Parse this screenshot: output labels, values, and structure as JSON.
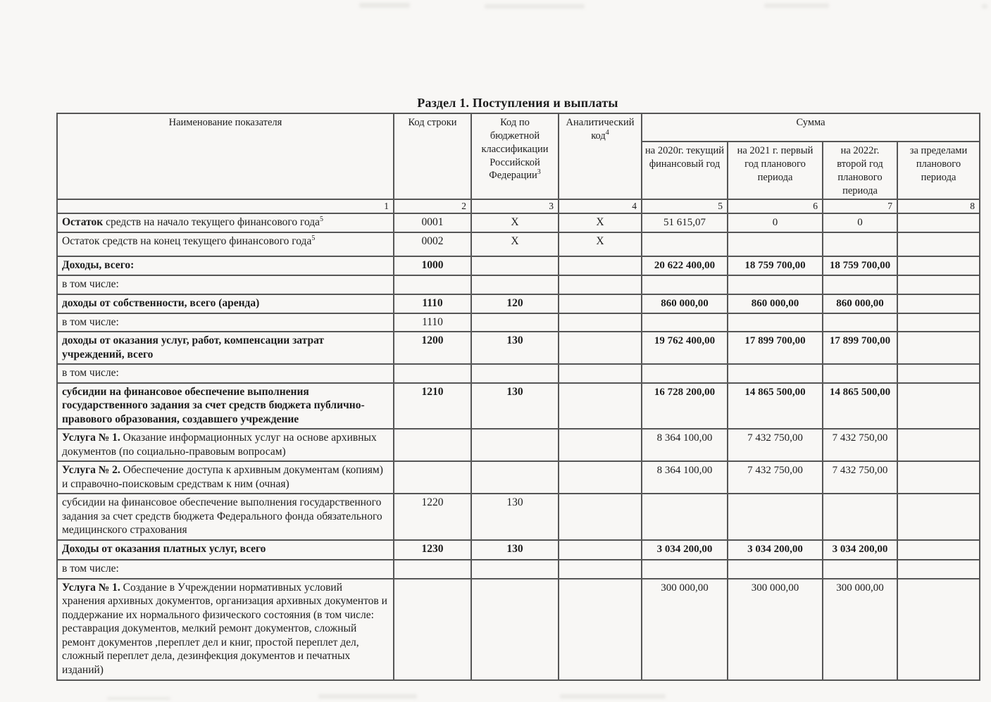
{
  "page": {
    "title": "Раздел 1. Поступления и выплаты"
  },
  "colors": {
    "page_bg": "#f8f7f5",
    "ink": "#1c1c1c",
    "table_border": "#565656"
  },
  "table": {
    "headers": {
      "name": "Наименование показателя",
      "line_code": "Код строки",
      "kbk": "Код по бюджетной классификации Российской Федерации",
      "kbk_sup": "3",
      "analytic": "Аналитический код",
      "analytic_sup": "4",
      "sum": "Сумма",
      "sum_cols": [
        "на 2020г. текущий финансовый год",
        "на 2021 г. первый год планового периода",
        "на 2022г. второй год планового периода",
        "за пределами планового периода"
      ],
      "col_numbers": [
        "1",
        "2",
        "3",
        "4",
        "5",
        "6",
        "7",
        "8"
      ]
    },
    "rows": [
      {
        "lead": "Остаток",
        "text": " средств на начало текущего финансового года",
        "sup": "5",
        "bold": false,
        "code": "0001",
        "kbk": "X",
        "an": "X",
        "y2020": "51 615,07",
        "y2021": "0",
        "y2022": "0",
        "beyond": "",
        "values_bold": false
      },
      {
        "lead": "",
        "text": "Остаток средств на конец текущего финансового года",
        "sup": "5",
        "bold": false,
        "code": "0002",
        "kbk": "X",
        "an": "X",
        "y2020": "",
        "y2021": "",
        "y2022": "",
        "beyond": "",
        "values_bold": false
      },
      {
        "lead": "",
        "text": "Доходы, всего:",
        "sup": "",
        "bold": true,
        "code": "1000",
        "kbk": "",
        "an": "",
        "y2020": "20 622 400,00",
        "y2021": "18 759 700,00",
        "y2022": "18 759 700,00",
        "beyond": "",
        "values_bold": true
      },
      {
        "lead": "",
        "text": "в том числе:",
        "sup": "",
        "bold": false,
        "code": "",
        "kbk": "",
        "an": "",
        "y2020": "",
        "y2021": "",
        "y2022": "",
        "beyond": "",
        "values_bold": false
      },
      {
        "lead": "",
        "text": "доходы от собственности, всего (аренда)",
        "sup": "",
        "bold": true,
        "code": "1110",
        "kbk": "120",
        "an": "",
        "y2020": "860 000,00",
        "y2021": "860 000,00",
        "y2022": "860 000,00",
        "beyond": "",
        "values_bold": true
      },
      {
        "lead": "",
        "text": "в том числе:",
        "sup": "",
        "bold": false,
        "code": "1110",
        "kbk": "",
        "an": "",
        "y2020": "",
        "y2021": "",
        "y2022": "",
        "beyond": "",
        "values_bold": false
      },
      {
        "lead": "",
        "text": "доходы от оказания услуг, работ, компенсации затрат учреждений, всего",
        "sup": "",
        "bold": true,
        "code": "1200",
        "kbk": "130",
        "an": "",
        "y2020": "19 762 400,00",
        "y2021": "17 899 700,00",
        "y2022": "17 899 700,00",
        "beyond": "",
        "values_bold": true
      },
      {
        "lead": "",
        "text": "в том числе:",
        "sup": "",
        "bold": false,
        "code": "",
        "kbk": "",
        "an": "",
        "y2020": "",
        "y2021": "",
        "y2022": "",
        "beyond": "",
        "values_bold": false
      },
      {
        "lead": "",
        "text": "субсидии на финансовое обеспечение выполнения государственного задания за счет средств бюджета публично-правового образования, создавшего учреждение",
        "sup": "",
        "bold": true,
        "code": "1210",
        "kbk": "130",
        "an": "",
        "y2020": "16 728 200,00",
        "y2021": "14 865 500,00",
        "y2022": "14 865 500,00",
        "beyond": "",
        "values_bold": true
      },
      {
        "lead": "Услуга № 1.",
        "text": " Оказание информационных услуг на основе архивных документов (по социально-правовым вопросам)",
        "sup": "",
        "bold": false,
        "code": "",
        "kbk": "",
        "an": "",
        "y2020": "8 364 100,00",
        "y2021": "7 432 750,00",
        "y2022": "7 432 750,00",
        "beyond": "",
        "values_bold": false
      },
      {
        "lead": "Услуга № 2.",
        "text": " Обеспечение доступа к архивным документам (копиям) и справочно-поисковым средствам к ним (очная)",
        "sup": "",
        "bold": false,
        "code": "",
        "kbk": "",
        "an": "",
        "y2020": "8 364 100,00",
        "y2021": "7 432 750,00",
        "y2022": "7 432 750,00",
        "beyond": "",
        "values_bold": false
      },
      {
        "lead": "",
        "text": "субсидии на финансовое обеспечение выполнения государственного задания за счет средств бюджета Федерального фонда обязательного медицинского страхования",
        "sup": "",
        "bold": false,
        "code": "1220",
        "kbk": "130",
        "an": "",
        "y2020": "",
        "y2021": "",
        "y2022": "",
        "beyond": "",
        "values_bold": false
      },
      {
        "lead": "",
        "text": "Доходы от оказания платных услуг, всего",
        "sup": "",
        "bold": true,
        "code": "1230",
        "kbk": "130",
        "an": "",
        "y2020": "3 034 200,00",
        "y2021": "3 034 200,00",
        "y2022": "3 034 200,00",
        "beyond": "",
        "values_bold": true
      },
      {
        "lead": "",
        "text": "в том числе:",
        "sup": "",
        "bold": false,
        "code": "",
        "kbk": "",
        "an": "",
        "y2020": "",
        "y2021": "",
        "y2022": "",
        "beyond": "",
        "values_bold": false
      },
      {
        "lead": "Услуга № 1.",
        "text": " Создание в Учреждении нормативных условий хранения архивных документов, организация архивных документов и поддержание их нормального физического состояния (в том числе: реставрация документов, мелкий ремонт документов, сложный ремонт документов ,переплет дел и книг, простой переплет дел, сложный переплет дела, дезинфекция документов и печатных изданий)",
        "sup": "",
        "bold": false,
        "code": "",
        "kbk": "",
        "an": "",
        "y2020": "300 000,00",
        "y2021": "300 000,00",
        "y2022": "300 000,00",
        "beyond": "",
        "values_bold": false
      }
    ]
  }
}
